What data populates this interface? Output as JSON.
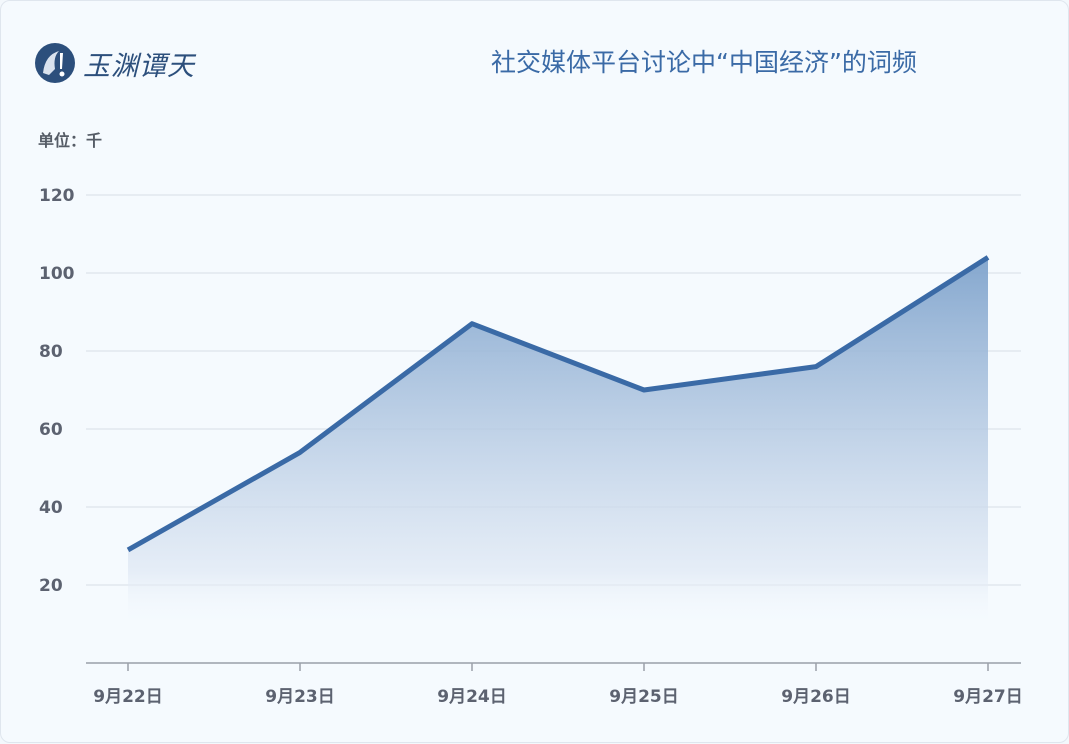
{
  "brand": {
    "name": "玉渊谭天"
  },
  "chart_data": {
    "type": "area",
    "title": "社交媒体平台讨论中“中国经济”的词频",
    "unit_label": "单位：千",
    "categories": [
      "9月22日",
      "9月23日",
      "9月24日",
      "9月25日",
      "9月26日",
      "9月27日"
    ],
    "values": [
      29,
      54,
      87,
      70,
      76,
      104
    ],
    "yticks": [
      "20",
      "40",
      "60",
      "80",
      "100",
      "120"
    ],
    "ylim": [
      0,
      120
    ],
    "grid": true,
    "line_color": "#3a6aa6",
    "fill_color": "#7fa3cc"
  }
}
